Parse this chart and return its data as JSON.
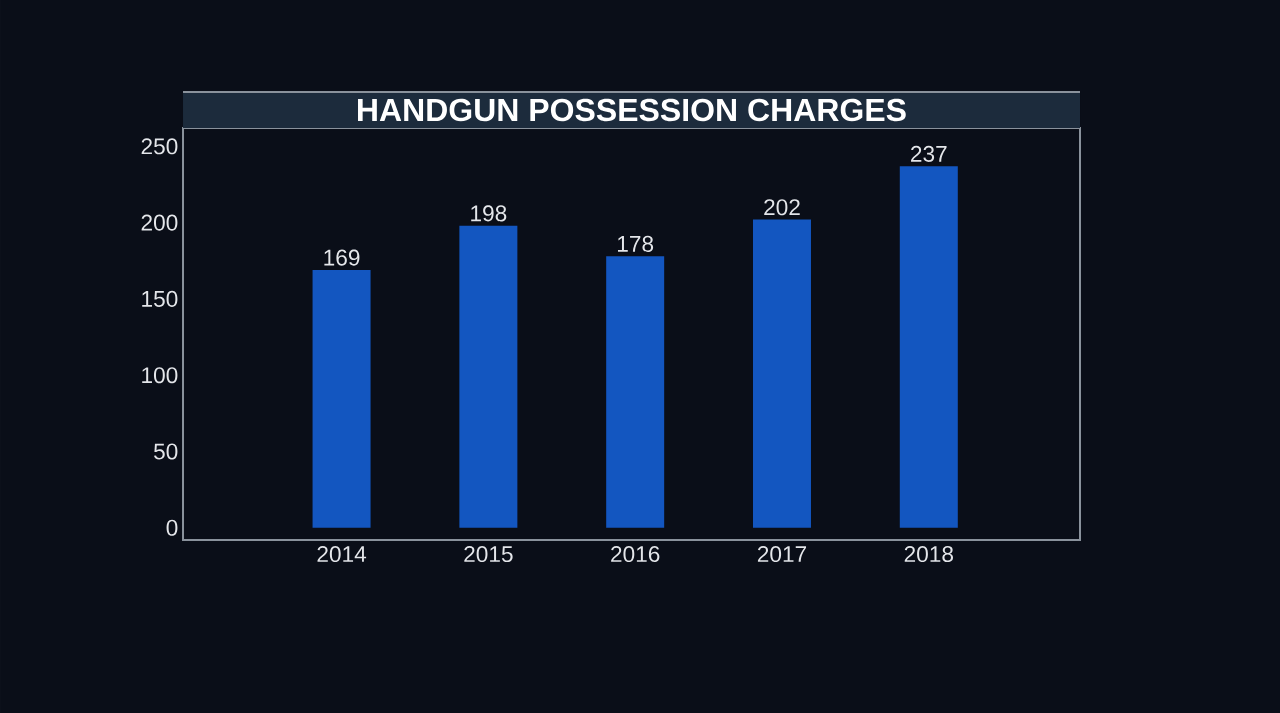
{
  "chart_data": {
    "type": "bar",
    "title": "HANDGUN POSSESSION CHARGES",
    "categories": [
      "2014",
      "2015",
      "2016",
      "2017",
      "2018"
    ],
    "values": [
      169,
      198,
      178,
      202,
      237
    ],
    "color": "#1356c0",
    "ylim": [
      -8,
      262
    ],
    "yticks": [
      0,
      50,
      100,
      150,
      200,
      250
    ],
    "data_labels": true
  }
}
